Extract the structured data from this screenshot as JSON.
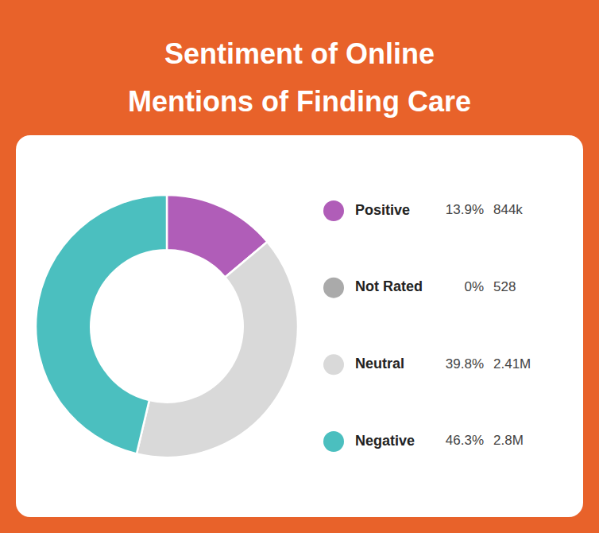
{
  "chart_data": {
    "type": "pie",
    "title": "Sentiment of Online",
    "subtitle": "Mentions of Finding Care",
    "categories": [
      "Positive",
      "Not Rated",
      "Neutral",
      "Negative"
    ],
    "values": [
      13.9,
      0.01,
      39.8,
      46.3
    ],
    "value_labels": [
      "13.9%",
      "0%",
      "39.8%",
      "46.3%"
    ],
    "counts": [
      "844k",
      "528",
      "2.41M",
      "2.8M"
    ],
    "colors": [
      "#b05db8",
      "#aaaaaa",
      "#d9d9d9",
      "#4bbfbf"
    ],
    "legend": "right"
  }
}
